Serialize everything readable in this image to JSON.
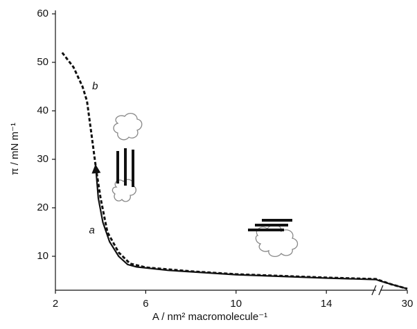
{
  "chart_data": {
    "type": "line",
    "x_label": "A / nm² macromolecule⁻¹",
    "y_label": "π / mN m⁻¹",
    "xlim": [
      2,
      30
    ],
    "x_axis_break": [
      16.2,
      28.8
    ],
    "xticks": [
      2,
      6,
      10,
      14,
      30
    ],
    "ylim": [
      3,
      60
    ],
    "yticks": [
      10,
      20,
      30,
      40,
      50,
      60
    ],
    "series": [
      {
        "name": "a",
        "color": "#111111",
        "dash": false,
        "x": [
          3.8,
          3.9,
          4.1,
          4.4,
          4.8,
          5.2,
          5.6,
          7,
          10,
          14,
          16.2,
          28.8,
          29.3,
          30
        ],
        "values": [
          27.5,
          22,
          17,
          13,
          10,
          8.3,
          7.8,
          7.1,
          6.2,
          5.5,
          5.2,
          4.9,
          4.2,
          3.3
        ]
      },
      {
        "name": "b",
        "color": "#111111",
        "dash": true,
        "x": [
          2.3,
          2.8,
          3.2,
          3.4,
          3.6,
          3.8,
          4.0,
          4.3,
          4.8,
          5.3,
          6,
          8,
          10,
          14,
          16.2,
          28.8,
          29.3,
          30
        ],
        "values": [
          52,
          49,
          45,
          42,
          35,
          28,
          22,
          15,
          10.8,
          8.5,
          7.7,
          6.9,
          6.3,
          5.6,
          5.3,
          5.0,
          4.2,
          3.3
        ]
      }
    ]
  }
}
